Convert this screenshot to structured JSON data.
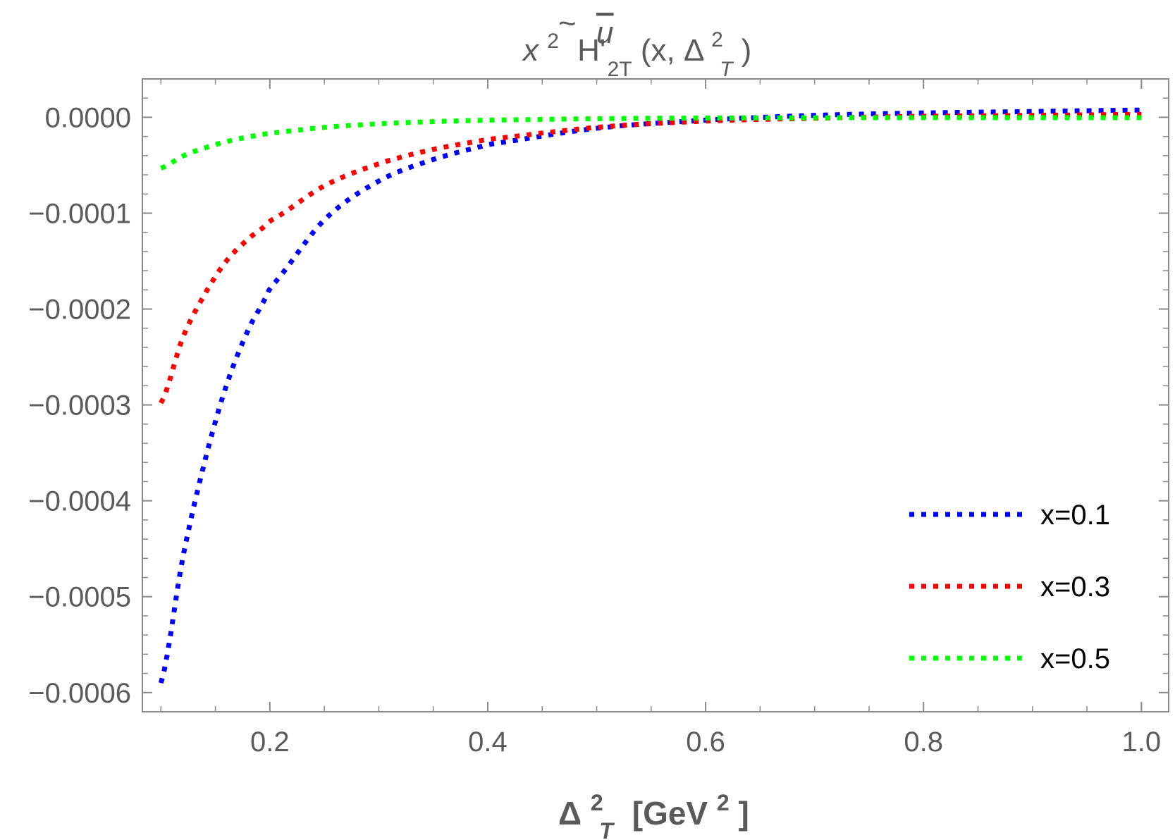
{
  "chart_data": {
    "type": "line",
    "title": {
      "prefix": "x",
      "prefix_sup": "2",
      "func": "H'",
      "func_tilde": "~",
      "func_sup": "u",
      "func_sub": "2T",
      "args_open": "(x, ",
      "args_delta": "Δ",
      "args_delta_sup": "2",
      "args_delta_sub": "T",
      "args_close": ")"
    },
    "xlabel": {
      "delta": "Δ",
      "delta_sup": "2",
      "delta_sub": "T",
      "unit_open": "[GeV",
      "unit_sup": "2",
      "unit_close": "]"
    },
    "xlim": [
      0.083,
      1.025
    ],
    "ylim": [
      -0.00062,
      4e-05
    ],
    "x_ticks": [
      {
        "value": 0.2,
        "label": "0.2"
      },
      {
        "value": 0.4,
        "label": "0.4"
      },
      {
        "value": 0.6,
        "label": "0.6"
      },
      {
        "value": 0.8,
        "label": "0.8"
      },
      {
        "value": 1.0,
        "label": "1.0"
      }
    ],
    "y_ticks": [
      {
        "value": 0.0,
        "label": "0.0000"
      },
      {
        "value": -0.0001,
        "label": "−0.0001"
      },
      {
        "value": -0.0002,
        "label": "−0.0002"
      },
      {
        "value": -0.0003,
        "label": "−0.0003"
      },
      {
        "value": -0.0004,
        "label": "−0.0004"
      },
      {
        "value": -0.0005,
        "label": "−0.0005"
      },
      {
        "value": -0.0006,
        "label": "−0.0006"
      }
    ],
    "legend_position": "bottom-right",
    "line_style": "dotted",
    "series": [
      {
        "name": "x=0.1",
        "color": "#0000ff",
        "x": [
          0.1,
          0.12,
          0.14,
          0.16,
          0.18,
          0.2,
          0.25,
          0.3,
          0.35,
          0.4,
          0.5,
          0.6,
          0.7,
          0.8,
          0.9,
          1.0
        ],
        "y": [
          -0.00059,
          -0.00046,
          -0.00036,
          -0.00028,
          -0.000222,
          -0.000178,
          -0.000107,
          -6.65e-05,
          -4.4e-05,
          -2.85e-05,
          -1.15e-05,
          -3e-06,
          2e-06,
          4.5e-06,
          6e-06,
          7.5e-06
        ]
      },
      {
        "name": "x=0.3",
        "color": "#ff0000",
        "x": [
          0.1,
          0.12,
          0.14,
          0.16,
          0.18,
          0.2,
          0.25,
          0.3,
          0.35,
          0.4,
          0.5,
          0.6,
          0.7,
          0.8,
          0.9,
          1.0
        ],
        "y": [
          -0.000298,
          -0.00023,
          -0.000185,
          -0.00015,
          -0.000127,
          -0.000108,
          -7.15e-05,
          -4.85e-05,
          -3.35e-05,
          -2.3e-05,
          -1.05e-05,
          -4e-06,
          -1e-06,
          1e-06,
          2e-06,
          3e-06
        ]
      },
      {
        "name": "x=0.5",
        "color": "#00ff00",
        "x": [
          0.1,
          0.12,
          0.14,
          0.16,
          0.18,
          0.2,
          0.25,
          0.3,
          0.35,
          0.4,
          0.5,
          0.6,
          0.7,
          0.8,
          0.9,
          1.0
        ],
        "y": [
          -5.3e-05,
          -4.05e-05,
          -3.2e-05,
          -2.55e-05,
          -2.05e-05,
          -1.65e-05,
          -1.05e-05,
          -6.8e-06,
          -4.5e-06,
          -3e-06,
          -1.5e-06,
          -8e-07,
          -5e-07,
          -4e-07,
          -4e-07,
          -4e-07
        ]
      }
    ]
  }
}
